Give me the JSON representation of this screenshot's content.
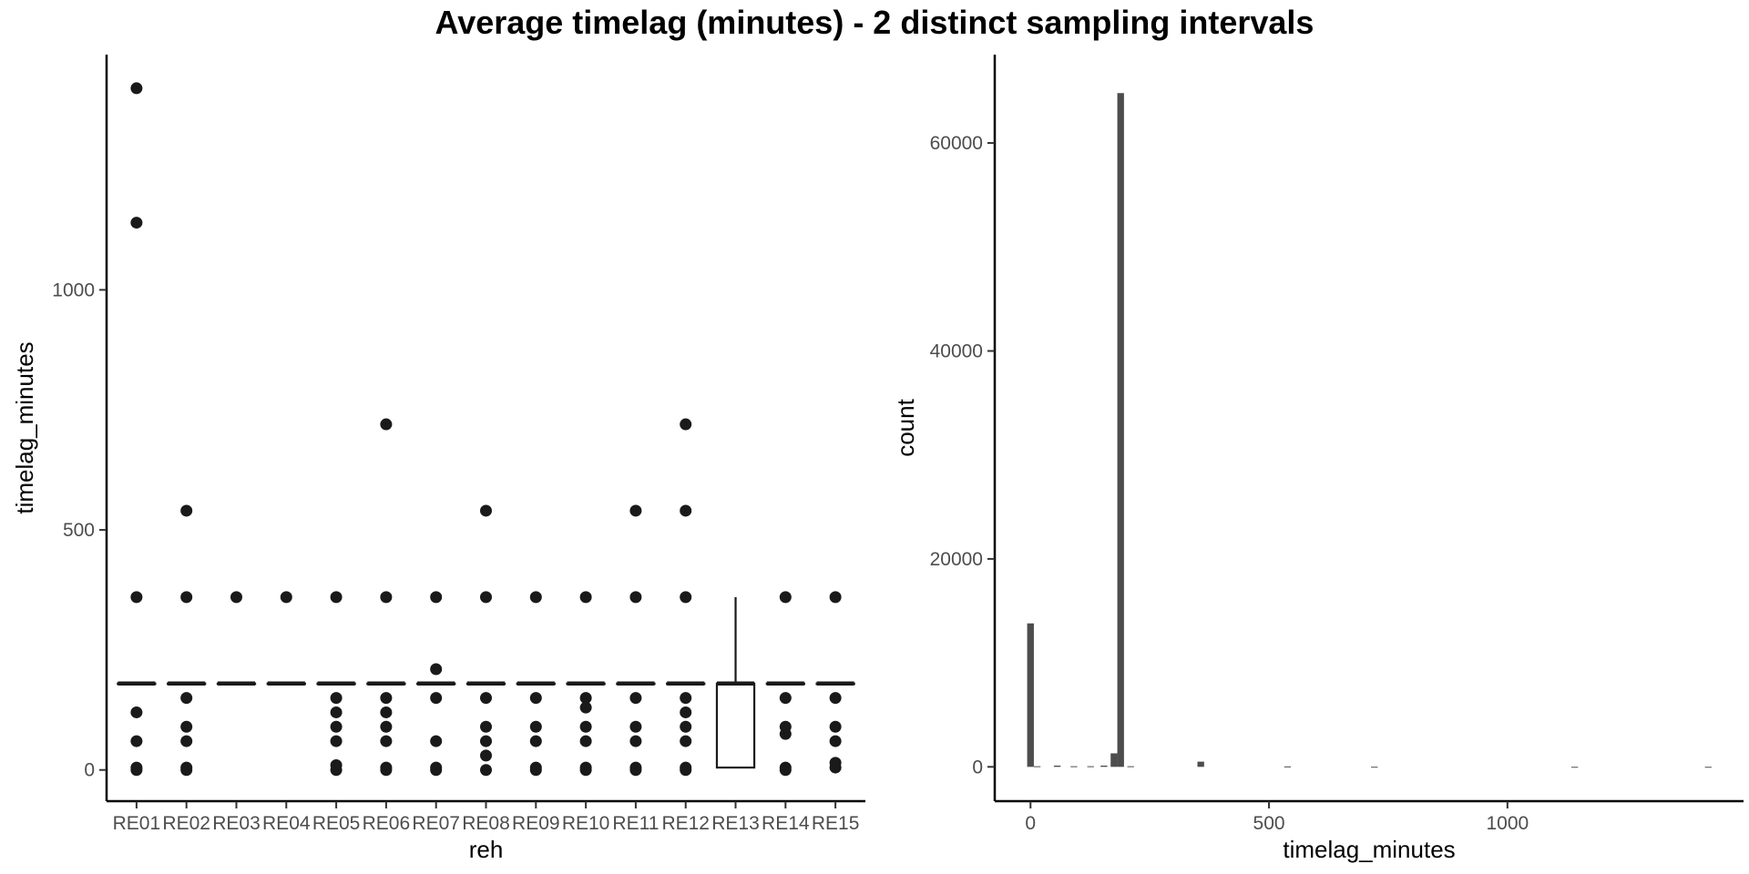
{
  "title": "Average timelag (minutes) - 2 distinct sampling intervals",
  "chart_data": [
    {
      "type": "box",
      "xlabel": "reh",
      "ylabel": "timelag_minutes",
      "ylim": [
        -65,
        1490
      ],
      "yticks": [
        0,
        500,
        1000
      ],
      "grid": false,
      "categories": [
        "RE01",
        "RE02",
        "RE03",
        "RE04",
        "RE05",
        "RE06",
        "RE07",
        "RE08",
        "RE09",
        "RE10",
        "RE11",
        "RE12",
        "RE13",
        "RE14",
        "RE15"
      ],
      "boxes": [
        {
          "category": "RE01",
          "q1": 180,
          "median": 180,
          "q3": 180,
          "whisker_low": 180,
          "whisker_high": 180,
          "outliers": [
            1420,
            1140,
            360,
            120,
            60,
            5,
            0
          ]
        },
        {
          "category": "RE02",
          "q1": 180,
          "median": 180,
          "q3": 180,
          "whisker_low": 180,
          "whisker_high": 180,
          "outliers": [
            540,
            360,
            150,
            90,
            60,
            5,
            0
          ]
        },
        {
          "category": "RE03",
          "q1": 180,
          "median": 180,
          "q3": 180,
          "whisker_low": 180,
          "whisker_high": 180,
          "outliers": [
            360
          ]
        },
        {
          "category": "RE04",
          "q1": 180,
          "median": 180,
          "q3": 180,
          "whisker_low": 180,
          "whisker_high": 180,
          "outliers": [
            360
          ]
        },
        {
          "category": "RE05",
          "q1": 180,
          "median": 180,
          "q3": 180,
          "whisker_low": 180,
          "whisker_high": 180,
          "outliers": [
            360,
            150,
            120,
            90,
            60,
            10,
            0
          ]
        },
        {
          "category": "RE06",
          "q1": 180,
          "median": 180,
          "q3": 180,
          "whisker_low": 180,
          "whisker_high": 180,
          "outliers": [
            720,
            360,
            150,
            120,
            90,
            60,
            5,
            0
          ]
        },
        {
          "category": "RE07",
          "q1": 180,
          "median": 180,
          "q3": 180,
          "whisker_low": 180,
          "whisker_high": 180,
          "outliers": [
            360,
            210,
            150,
            60,
            5,
            0
          ]
        },
        {
          "category": "RE08",
          "q1": 180,
          "median": 180,
          "q3": 180,
          "whisker_low": 180,
          "whisker_high": 180,
          "outliers": [
            540,
            360,
            150,
            90,
            60,
            30,
            0
          ]
        },
        {
          "category": "RE09",
          "q1": 180,
          "median": 180,
          "q3": 180,
          "whisker_low": 180,
          "whisker_high": 180,
          "outliers": [
            360,
            150,
            90,
            60,
            5,
            0
          ]
        },
        {
          "category": "RE10",
          "q1": 180,
          "median": 180,
          "q3": 180,
          "whisker_low": 180,
          "whisker_high": 180,
          "outliers": [
            360,
            150,
            130,
            90,
            60,
            5,
            0
          ]
        },
        {
          "category": "RE11",
          "q1": 180,
          "median": 180,
          "q3": 180,
          "whisker_low": 180,
          "whisker_high": 180,
          "outliers": [
            540,
            360,
            150,
            90,
            60,
            5,
            0
          ]
        },
        {
          "category": "RE12",
          "q1": 180,
          "median": 180,
          "q3": 180,
          "whisker_low": 180,
          "whisker_high": 180,
          "outliers": [
            720,
            540,
            360,
            150,
            120,
            90,
            60,
            5,
            0
          ]
        },
        {
          "category": "RE13",
          "q1": 5,
          "median": 180,
          "q3": 180,
          "whisker_low": 5,
          "whisker_high": 360,
          "outliers": []
        },
        {
          "category": "RE14",
          "q1": 180,
          "median": 180,
          "q3": 180,
          "whisker_low": 180,
          "whisker_high": 180,
          "outliers": [
            360,
            150,
            90,
            75,
            5,
            0
          ]
        },
        {
          "category": "RE15",
          "q1": 180,
          "median": 180,
          "q3": 180,
          "whisker_low": 180,
          "whisker_high": 180,
          "outliers": [
            360,
            150,
            90,
            60,
            15,
            5
          ]
        }
      ]
    },
    {
      "type": "bar",
      "subtype": "histogram",
      "xlabel": "timelag_minutes",
      "ylabel": "count",
      "xlim": [
        -75,
        1495
      ],
      "ylim": [
        -3300,
        68500
      ],
      "xticks": [
        0,
        500,
        1000
      ],
      "yticks": [
        0,
        20000,
        40000,
        60000
      ],
      "grid": false,
      "bins": [
        {
          "x0": -7,
          "x1": 7,
          "count": 13800
        },
        {
          "x0": 7,
          "x1": 21,
          "count": 60
        },
        {
          "x0": 49,
          "x1": 63,
          "count": 120
        },
        {
          "x0": 84,
          "x1": 98,
          "count": 60
        },
        {
          "x0": 119,
          "x1": 133,
          "count": 60
        },
        {
          "x0": 147,
          "x1": 161,
          "count": 120
        },
        {
          "x0": 168,
          "x1": 182,
          "count": 1300
        },
        {
          "x0": 182,
          "x1": 196,
          "count": 64800
        },
        {
          "x0": 203,
          "x1": 217,
          "count": 60
        },
        {
          "x0": 350,
          "x1": 364,
          "count": 500
        },
        {
          "x0": 532,
          "x1": 546,
          "count": 40
        },
        {
          "x0": 714,
          "x1": 728,
          "count": 10
        },
        {
          "x0": 1134,
          "x1": 1148,
          "count": 5
        },
        {
          "x0": 1414,
          "x1": 1428,
          "count": 5
        }
      ]
    }
  ]
}
